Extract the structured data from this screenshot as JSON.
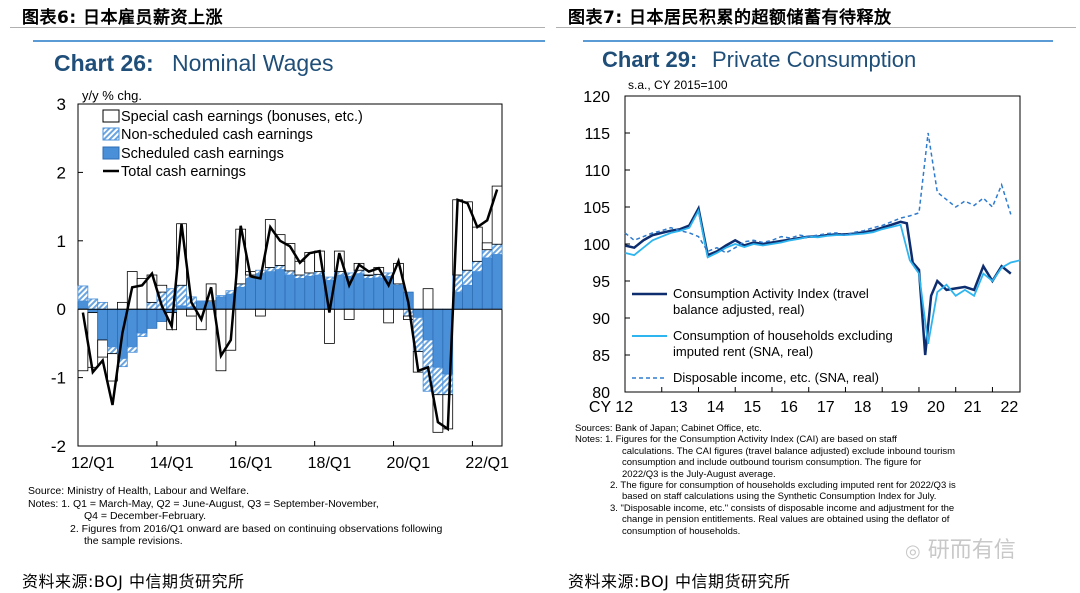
{
  "left": {
    "figure_title": "图表6:  日本雇员薪资上涨",
    "source": "资料来源:BOJ 中信期货研究所",
    "notes": [
      "Source: Ministry of Health, Labour and Welfare.",
      "Notes: 1. Q1 = March-May, Q2 = June-August, Q3 = September-November,",
      "Q4 = December-February.",
      "2. Figures from 2016/Q1 onward are based on continuing observations following",
      "the sample revisions."
    ]
  },
  "right": {
    "figure_title": "图表7:  日本居民积累的超额储蓄有待释放",
    "source": "资料来源:BOJ 中信期货研究所",
    "notes": [
      "Sources: Bank of Japan; Cabinet Office, etc.",
      "Notes: 1. Figures for the Consumption Activity Index (CAI) are based on staff",
      "calculations. The CAI figures (travel balance adjusted) exclude inbound tourism",
      "consumption and include outbound tourism consumption. The figure for",
      "2022/Q3 is the July-August average.",
      "2. The figure for consumption of households excluding imputed rent for 2022/Q3 is",
      "based on staff calculations using the Synthetic Consumption Index for July.",
      "3. \"Disposable income, etc.\" consists of disposable income and adjustment for the",
      "change in pension entitlements. Real values are obtained using the deflator of",
      "consumption of households."
    ]
  },
  "watermark": "研而有信",
  "chart_data": [
    {
      "type": "bar",
      "title_bold": "Chart 26:",
      "title": "Nominal Wages",
      "ylabel": "y/y % chg.",
      "ylim": [
        -2,
        3
      ],
      "yticks": [
        "3",
        "2",
        "1",
        "0",
        "-1",
        "-2"
      ],
      "xticks": [
        "12/Q1",
        "14/Q1",
        "16/Q1",
        "18/Q1",
        "20/Q1",
        "22/Q1"
      ],
      "legend": [
        "Special cash earnings (bonuses, etc.)",
        "Non-scheduled cash earnings",
        "Scheduled cash earnings",
        "Total cash earnings"
      ],
      "colors": {
        "scheduled": "#4a90d9",
        "nonscheduled": "#9cc3ea",
        "special": "#ffffff",
        "total": "#000000"
      },
      "periods": 43,
      "scheduled": [
        0.12,
        -0.05,
        -0.45,
        -0.55,
        -0.72,
        -0.55,
        -0.35,
        -0.28,
        -0.18,
        -0.05,
        0.05,
        0.03,
        0.12,
        0.1,
        0.18,
        0.22,
        0.32,
        0.45,
        0.52,
        0.55,
        0.58,
        0.5,
        0.45,
        0.48,
        0.5,
        0.42,
        0.5,
        0.48,
        0.52,
        0.45,
        0.46,
        0.48,
        0.35,
        0.25,
        -0.12,
        -0.45,
        -0.85,
        -0.95,
        0.25,
        0.35,
        0.55,
        0.75,
        0.8
      ],
      "nonscheduled": [
        0.22,
        0.15,
        0.1,
        -0.1,
        -0.12,
        -0.08,
        -0.05,
        0.1,
        0.25,
        0.3,
        0.3,
        0.15,
        0.0,
        0.02,
        0.02,
        0.05,
        0.05,
        0.05,
        0.05,
        0.06,
        0.06,
        0.06,
        0.05,
        0.05,
        0.05,
        0.05,
        0.05,
        0.05,
        0.05,
        0.05,
        0.05,
        0.05,
        0.02,
        -0.1,
        -0.5,
        -0.75,
        -0.4,
        -0.3,
        0.25,
        0.22,
        0.15,
        0.12,
        0.15
      ],
      "special": [
        -0.9,
        -0.8,
        -0.25,
        -0.4,
        0.1,
        0.55,
        0.45,
        0.4,
        0.1,
        -0.25,
        0.9,
        -0.1,
        -0.3,
        0.25,
        -0.9,
        -0.6,
        0.8,
        0.05,
        -0.1,
        0.7,
        0.45,
        0.4,
        0.2,
        0.3,
        0.3,
        -0.5,
        0.3,
        -0.15,
        0.1,
        0.0,
        0.1,
        -0.2,
        0.3,
        -0.05,
        -0.3,
        0.3,
        -0.55,
        -0.5,
        1.1,
        1.0,
        0.5,
        0.1,
        0.85
      ],
      "total": [
        -0.05,
        -0.92,
        -0.75,
        -1.4,
        -0.35,
        0.32,
        0.35,
        0.52,
        0.05,
        -0.25,
        1.25,
        0.1,
        -0.15,
        0.32,
        -0.68,
        -0.45,
        1.22,
        0.48,
        0.45,
        1.2,
        1.0,
        0.92,
        0.68,
        0.82,
        0.85,
        -0.05,
        0.82,
        0.35,
        0.65,
        0.55,
        0.6,
        0.35,
        0.7,
        0.1,
        -0.9,
        -0.85,
        -1.65,
        -1.75,
        1.6,
        1.55,
        1.2,
        1.3,
        1.75
      ]
    },
    {
      "type": "line",
      "title_bold": "Chart 29:",
      "title": "Private Consumption",
      "ylabel": "s.a., CY 2015=100",
      "ylim": [
        80,
        120
      ],
      "yticks": [
        "120",
        "115",
        "110",
        "105",
        "100",
        "95",
        "90",
        "85",
        "80"
      ],
      "xticks": [
        "CY 12",
        "13",
        "14",
        "15",
        "16",
        "17",
        "18",
        "19",
        "20",
        "21",
        "22"
      ],
      "xrange": [
        2012,
        2022.75
      ],
      "series": [
        {
          "name": "Consumption Activity Index (travel balance adjusted, real)",
          "color": "#0d2d6e",
          "style": "solid",
          "x": [
            2012.0,
            2012.25,
            2012.5,
            2012.75,
            2013.0,
            2013.25,
            2013.5,
            2013.75,
            2014.0,
            2014.25,
            2014.5,
            2014.75,
            2015.0,
            2015.25,
            2015.5,
            2015.75,
            2016.0,
            2016.25,
            2016.5,
            2016.75,
            2017.0,
            2017.25,
            2017.5,
            2017.75,
            2018.0,
            2018.25,
            2018.5,
            2018.75,
            2019.0,
            2019.25,
            2019.5,
            2019.67,
            2019.83,
            2020.0,
            2020.17,
            2020.33,
            2020.5,
            2020.75,
            2021.0,
            2021.25,
            2021.5,
            2021.75,
            2022.0,
            2022.25,
            2022.5
          ],
          "y": [
            99.8,
            99.5,
            100.5,
            101.2,
            101.5,
            101.8,
            102.0,
            102.5,
            104.8,
            98.5,
            99.0,
            99.8,
            100.5,
            99.8,
            100.2,
            100.0,
            100.2,
            100.4,
            100.6,
            100.8,
            101.0,
            101.0,
            101.2,
            101.3,
            101.3,
            101.4,
            101.6,
            101.8,
            102.2,
            102.6,
            103.0,
            102.8,
            97.5,
            96.5,
            85.0,
            93.0,
            95.0,
            93.8,
            94.0,
            94.2,
            93.8,
            97.0,
            95.0,
            97.0,
            96.0
          ]
        },
        {
          "name": "Consumption of households excluding imputed rent (SNA, real)",
          "color": "#2eb4ee",
          "style": "solid",
          "x": [
            2012.0,
            2012.25,
            2012.5,
            2012.75,
            2013.0,
            2013.25,
            2013.5,
            2013.75,
            2014.0,
            2014.25,
            2014.5,
            2014.75,
            2015.0,
            2015.25,
            2015.5,
            2015.75,
            2016.0,
            2016.25,
            2016.5,
            2016.75,
            2017.0,
            2017.25,
            2017.5,
            2017.75,
            2018.0,
            2018.25,
            2018.5,
            2018.75,
            2019.0,
            2019.25,
            2019.5,
            2019.75,
            2020.0,
            2020.25,
            2020.5,
            2020.75,
            2021.0,
            2021.25,
            2021.5,
            2021.75,
            2022.0,
            2022.25,
            2022.5,
            2022.75
          ],
          "y": [
            98.8,
            98.5,
            99.5,
            100.5,
            101.0,
            101.5,
            101.8,
            102.2,
            104.5,
            98.2,
            98.8,
            99.5,
            100.0,
            99.6,
            100.0,
            99.8,
            100.0,
            100.2,
            100.5,
            100.7,
            101.0,
            100.9,
            101.1,
            101.2,
            101.2,
            101.3,
            101.4,
            101.6,
            102.0,
            102.3,
            102.6,
            97.8,
            96.0,
            86.5,
            93.5,
            94.5,
            93.0,
            93.8,
            93.0,
            96.0,
            95.0,
            96.8,
            97.5,
            97.8
          ]
        },
        {
          "name": "Disposable income, etc. (SNA, real)",
          "color": "#2e7bcf",
          "style": "dashed",
          "x": [
            2012.0,
            2012.25,
            2012.5,
            2012.75,
            2013.0,
            2013.25,
            2013.5,
            2013.75,
            2014.0,
            2014.25,
            2014.5,
            2014.75,
            2015.0,
            2015.25,
            2015.5,
            2015.75,
            2016.0,
            2016.25,
            2016.5,
            2016.75,
            2017.0,
            2017.25,
            2017.5,
            2017.75,
            2018.0,
            2018.25,
            2018.5,
            2018.75,
            2019.0,
            2019.25,
            2019.5,
            2019.75,
            2020.0,
            2020.25,
            2020.5,
            2020.75,
            2021.0,
            2021.25,
            2021.5,
            2021.75,
            2022.0,
            2022.25,
            2022.5
          ],
          "y": [
            101.5,
            100.5,
            101.0,
            101.5,
            101.8,
            102.2,
            101.8,
            101.5,
            101.0,
            99.0,
            99.5,
            98.8,
            99.5,
            100.3,
            100.5,
            100.2,
            100.5,
            101.0,
            100.8,
            101.2,
            101.0,
            101.2,
            101.4,
            101.5,
            101.2,
            101.6,
            101.8,
            102.2,
            102.5,
            103.0,
            103.5,
            103.8,
            104.2,
            115.0,
            107.0,
            106.0,
            105.0,
            105.8,
            105.2,
            106.2,
            105.0,
            108.0,
            104.0
          ]
        }
      ]
    }
  ]
}
